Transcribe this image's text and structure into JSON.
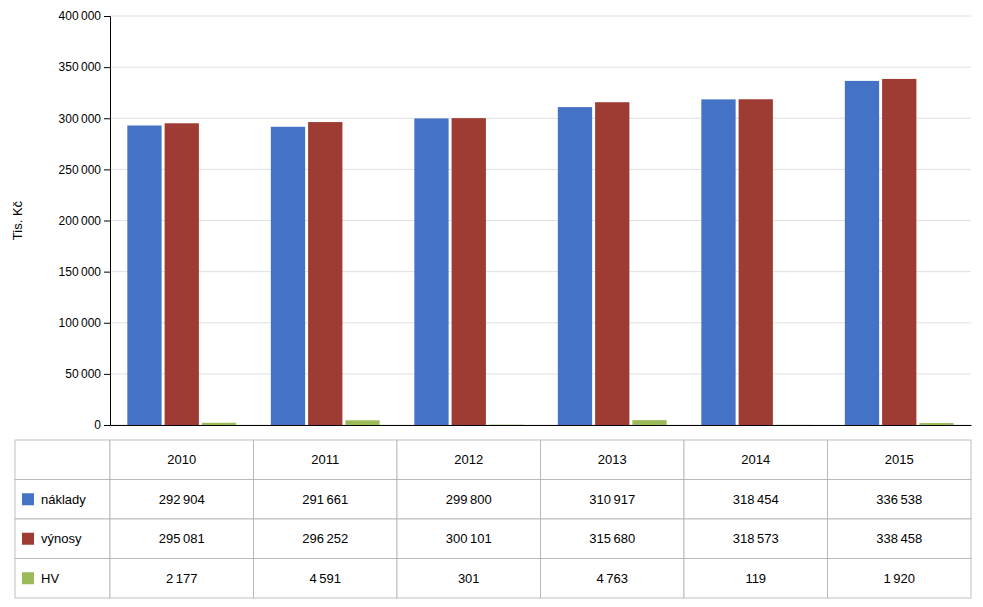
{
  "chart_data": {
    "type": "bar",
    "y_label": "Tis. Kč",
    "categories": [
      "2010",
      "2011",
      "2012",
      "2013",
      "2014",
      "2015"
    ],
    "series": [
      {
        "name": "náklady",
        "color": "#4472C4",
        "values": [
          292904,
          291661,
          299800,
          310917,
          318454,
          336538
        ],
        "value_labels": [
          "292 904",
          "291 661",
          "299 800",
          "310 917",
          "318 454",
          "336 538"
        ]
      },
      {
        "name": "výnosy",
        "color": "#9E3B32",
        "values": [
          295081,
          296252,
          300101,
          315680,
          318573,
          338458
        ],
        "value_labels": [
          "295 081",
          "296 252",
          "300 101",
          "315 680",
          "318 573",
          "338 458"
        ]
      },
      {
        "name": "HV",
        "color": "#9BBB59",
        "values": [
          2177,
          4591,
          301,
          4763,
          119,
          1920
        ],
        "value_labels": [
          "2 177",
          "4 591",
          "301",
          "4 763",
          "119",
          "1 920"
        ]
      }
    ],
    "ylim": [
      0,
      400000
    ],
    "yticks": [
      0,
      {
        "value": 50000,
        "label": "50 000"
      },
      {
        "value": 100000,
        "label": "100 000"
      },
      {
        "value": 150000,
        "label": "150 000"
      },
      {
        "value": 200000,
        "label": "200 000"
      },
      {
        "value": 250000,
        "label": "250 000"
      },
      {
        "value": 300000,
        "label": "300 000"
      },
      {
        "value": 350000,
        "label": "350 000"
      },
      {
        "value": 400000,
        "label": "400 000"
      }
    ],
    "grid": true,
    "tick_labels": "y"
  }
}
